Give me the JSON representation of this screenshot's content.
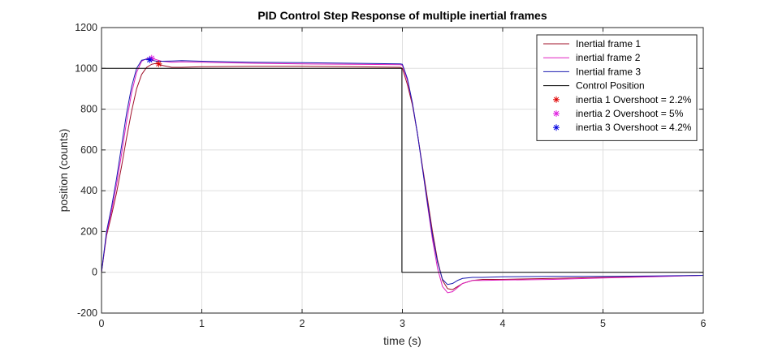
{
  "chart_data": {
    "type": "line",
    "title": "PID Control Step Response of multiple inertial frames",
    "xlabel": "time (s)",
    "ylabel": "position (counts)",
    "xlim": [
      0,
      6
    ],
    "ylim": [
      -200,
      1200
    ],
    "xticks": [
      0,
      1,
      2,
      3,
      4,
      5,
      6
    ],
    "yticks": [
      -200,
      0,
      200,
      400,
      600,
      800,
      1000,
      1200
    ],
    "grid": true,
    "legend_position": "top-right",
    "series": [
      {
        "name": "Inertial frame 1",
        "color": "#a0102a",
        "style": "line",
        "x": [
          0,
          0.05,
          0.1,
          0.15,
          0.2,
          0.25,
          0.3,
          0.35,
          0.4,
          0.45,
          0.5,
          0.55,
          0.6,
          0.7,
          0.8,
          1.0,
          1.5,
          2.0,
          2.5,
          2.98,
          3.0,
          3.05,
          3.1,
          3.15,
          3.2,
          3.25,
          3.3,
          3.35,
          3.4,
          3.45,
          3.5,
          3.55,
          3.6,
          3.7,
          3.8,
          4.0,
          4.5,
          5.0,
          5.5,
          6.0
        ],
        "y": [
          0,
          180,
          280,
          390,
          520,
          660,
          790,
          900,
          970,
          1005,
          1020,
          1025,
          1015,
          1005,
          1005,
          1008,
          1010,
          1010,
          1008,
          1005,
          1000,
          920,
          820,
          680,
          520,
          360,
          200,
          60,
          -40,
          -80,
          -85,
          -70,
          -55,
          -40,
          -35,
          -35,
          -30,
          -25,
          -20,
          -15
        ]
      },
      {
        "name": "inertial frame 2",
        "color": "#e020c0",
        "style": "line",
        "x": [
          0,
          0.05,
          0.1,
          0.15,
          0.2,
          0.25,
          0.3,
          0.35,
          0.4,
          0.45,
          0.5,
          0.55,
          0.6,
          0.7,
          0.8,
          1.0,
          1.5,
          2.0,
          2.5,
          2.98,
          3.0,
          3.05,
          3.1,
          3.15,
          3.2,
          3.25,
          3.3,
          3.35,
          3.4,
          3.45,
          3.5,
          3.55,
          3.6,
          3.7,
          3.8,
          4.0,
          4.5,
          5.0,
          5.5,
          6.0
        ],
        "y": [
          0,
          190,
          300,
          430,
          580,
          740,
          880,
          980,
          1035,
          1048,
          1050,
          1042,
          1035,
          1030,
          1032,
          1030,
          1025,
          1022,
          1020,
          1018,
          1015,
          940,
          830,
          680,
          510,
          330,
          160,
          20,
          -70,
          -100,
          -95,
          -75,
          -55,
          -40,
          -40,
          -38,
          -35,
          -28,
          -22,
          -15
        ]
      },
      {
        "name": "Inertial frame 3",
        "color": "#1a1ab0",
        "style": "line",
        "x": [
          0,
          0.05,
          0.1,
          0.15,
          0.2,
          0.25,
          0.3,
          0.35,
          0.4,
          0.45,
          0.5,
          0.55,
          0.6,
          0.7,
          0.8,
          1.0,
          1.5,
          2.0,
          2.5,
          2.98,
          3.0,
          3.05,
          3.1,
          3.15,
          3.2,
          3.25,
          3.3,
          3.35,
          3.4,
          3.45,
          3.5,
          3.55,
          3.6,
          3.7,
          3.8,
          4.0,
          4.5,
          5.0,
          5.5,
          6.0
        ],
        "y": [
          0,
          200,
          320,
          460,
          620,
          780,
          910,
          1000,
          1040,
          1045,
          1040,
          1035,
          1035,
          1036,
          1038,
          1035,
          1030,
          1028,
          1025,
          1022,
          1020,
          950,
          830,
          680,
          510,
          340,
          180,
          50,
          -35,
          -60,
          -55,
          -40,
          -30,
          -25,
          -25,
          -22,
          -20,
          -20,
          -18,
          -15
        ]
      },
      {
        "name": "Control Position",
        "color": "#000000",
        "style": "line",
        "x": [
          0,
          0,
          2.995,
          2.995,
          6
        ],
        "y": [
          0,
          1000,
          1000,
          0,
          0
        ]
      },
      {
        "name": "inertia 1 Overshoot = 2.2%",
        "color": "#e00000",
        "style": "marker",
        "x": [
          0.57
        ],
        "y": [
          1022
        ]
      },
      {
        "name": "inertia 2 Overshoot = 5%",
        "color": "#e020e0",
        "style": "marker",
        "x": [
          0.5
        ],
        "y": [
          1050
        ]
      },
      {
        "name": "inertia 3 Overshoot = 4.2%",
        "color": "#0000e0",
        "style": "marker",
        "x": [
          0.48
        ],
        "y": [
          1042
        ]
      }
    ]
  }
}
